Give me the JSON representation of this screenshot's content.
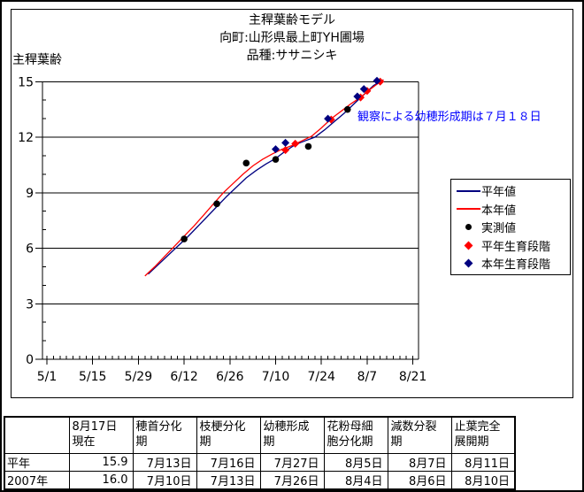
{
  "chart_data": {
    "type": "line",
    "title": "主稈葉齢モデル",
    "subtitle1": "向町:山形県最上町YH圃場",
    "subtitle2": "品種:ササニシキ",
    "ylabel": "主稈葉齢",
    "ylim": [
      0,
      15
    ],
    "y_ticks": [
      0,
      3,
      6,
      9,
      12,
      15
    ],
    "y_minor_step": 1,
    "x_ticks": [
      "5/1",
      "5/15",
      "5/29",
      "6/12",
      "6/26",
      "7/10",
      "7/24",
      "8/7",
      "8/21"
    ],
    "x_minor_step_days": 2,
    "grid": "horizontal",
    "legend_position": "right-inside",
    "annotation": {
      "text": "観察による幼穂形成期は７月１８日",
      "color": "#0000ff"
    },
    "series": [
      {
        "name": "平年値",
        "kind": "line",
        "color": "#000080",
        "points": [
          [
            "6/1",
            4.6
          ],
          [
            "6/4",
            5.1
          ],
          [
            "6/7",
            5.6
          ],
          [
            "6/10",
            6.1
          ],
          [
            "6/13",
            6.6
          ],
          [
            "6/16",
            7.15
          ],
          [
            "6/19",
            7.7
          ],
          [
            "6/22",
            8.25
          ],
          [
            "6/25",
            8.8
          ],
          [
            "6/28",
            9.3
          ],
          [
            "7/1",
            9.8
          ],
          [
            "7/4",
            10.2
          ],
          [
            "7/7",
            10.55
          ],
          [
            "7/10",
            10.85
          ],
          [
            "7/13",
            11.25
          ],
          [
            "7/16",
            11.6
          ],
          [
            "7/19",
            11.8
          ],
          [
            "7/22",
            12.0
          ],
          [
            "7/25",
            12.4
          ],
          [
            "7/28",
            12.85
          ],
          [
            "7/31",
            13.3
          ],
          [
            "8/3",
            13.8
          ],
          [
            "8/6",
            14.3
          ],
          [
            "8/9",
            14.8
          ],
          [
            "8/12",
            15.1
          ]
        ]
      },
      {
        "name": "本年値",
        "kind": "line",
        "color": "#ff0000",
        "points": [
          [
            "5/31",
            4.5
          ],
          [
            "6/3",
            5.0
          ],
          [
            "6/6",
            5.55
          ],
          [
            "6/9",
            6.1
          ],
          [
            "6/12",
            6.65
          ],
          [
            "6/15",
            7.2
          ],
          [
            "6/18",
            7.8
          ],
          [
            "6/21",
            8.4
          ],
          [
            "6/24",
            9.0
          ],
          [
            "6/27",
            9.5
          ],
          [
            "6/30",
            10.0
          ],
          [
            "7/3",
            10.45
          ],
          [
            "7/6",
            10.8
          ],
          [
            "7/9",
            11.1
          ],
          [
            "7/12",
            11.35
          ],
          [
            "7/15",
            11.55
          ],
          [
            "7/18",
            11.8
          ],
          [
            "7/21",
            12.05
          ],
          [
            "7/24",
            12.5
          ],
          [
            "7/27",
            13.0
          ],
          [
            "7/30",
            13.4
          ],
          [
            "8/2",
            13.8
          ],
          [
            "8/5",
            14.15
          ],
          [
            "8/8",
            14.6
          ],
          [
            "8/11",
            15.0
          ],
          [
            "8/12",
            15.1
          ]
        ]
      },
      {
        "name": "実測値",
        "kind": "dot",
        "color": "#000000",
        "points": [
          [
            "6/12",
            6.5
          ],
          [
            "6/22",
            8.4
          ],
          [
            "7/1",
            10.6
          ],
          [
            "7/10",
            10.8
          ],
          [
            "7/20",
            11.5
          ],
          [
            "8/1",
            13.5
          ]
        ]
      },
      {
        "name": "平年生育段階",
        "kind": "diamond",
        "color": "#ff0000",
        "points": [
          [
            "7/13",
            11.3
          ],
          [
            "7/16",
            11.65
          ],
          [
            "7/27",
            12.95
          ],
          [
            "8/5",
            14.15
          ],
          [
            "8/7",
            14.5
          ],
          [
            "8/11",
            15.0
          ]
        ]
      },
      {
        "name": "本年生育段階",
        "kind": "diamond",
        "color": "#000080",
        "points": [
          [
            "7/10",
            11.35
          ],
          [
            "7/13",
            11.7
          ],
          [
            "7/26",
            13.0
          ],
          [
            "8/4",
            14.2
          ],
          [
            "8/6",
            14.6
          ],
          [
            "8/10",
            15.05
          ]
        ]
      }
    ]
  },
  "table": {
    "headers": [
      "",
      "8月17日\n現在",
      "穂首分化\n期",
      "枝梗分化\n期",
      "幼穂形成\n期",
      "花粉母細\n胞分化期",
      "減数分裂\n期",
      "止葉完全\n展開期"
    ],
    "rows": [
      {
        "label": "平年",
        "values": [
          "15.9",
          "7月13日",
          "7月16日",
          "7月27日",
          "8月5日",
          "8月7日",
          "8月11日"
        ]
      },
      {
        "label": "2007年",
        "values": [
          "16.0",
          "7月10日",
          "7月13日",
          "7月26日",
          "8月4日",
          "8月6日",
          "8月10日"
        ]
      }
    ]
  }
}
